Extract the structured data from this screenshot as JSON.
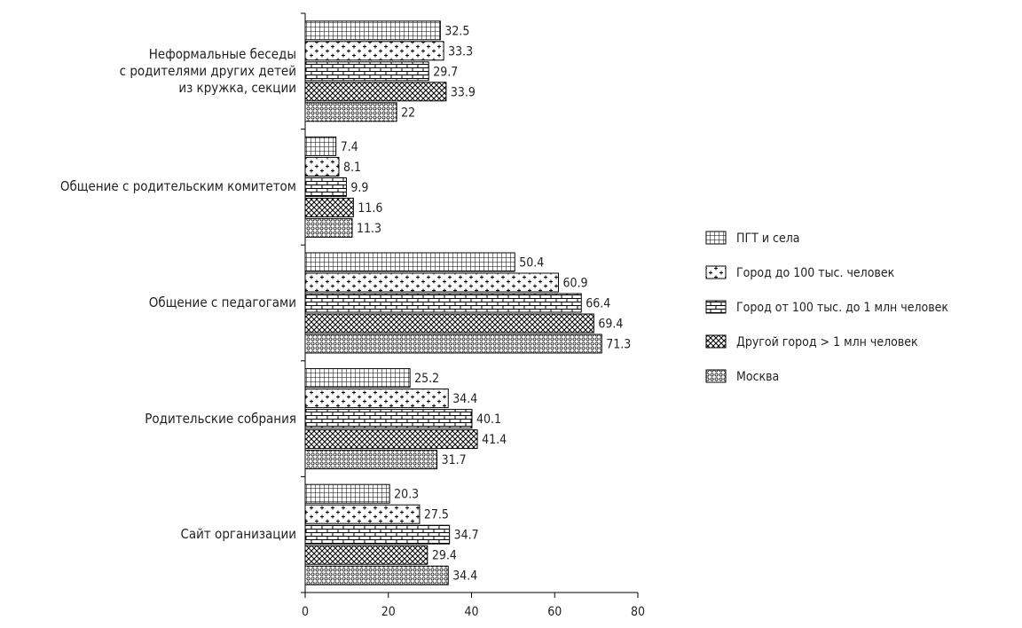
{
  "chart_data": {
    "type": "barh",
    "categories": [
      "Неформальные беседы\nс родителями других детей\nиз кружка, секции",
      "Общение с родительским комитетом",
      "Общение с педагогами",
      "Родительские собрания",
      "Сайт организации"
    ],
    "series": [
      {
        "name": "ПГТ и села",
        "color": "#000000",
        "pattern": "grid",
        "values": [
          32.5,
          7.4,
          50.4,
          25.2,
          20.3
        ]
      },
      {
        "name": "Город до 100 тыс. человек",
        "color": "#000000",
        "pattern": "plus",
        "values": [
          33.3,
          8.1,
          60.9,
          34.4,
          27.5
        ]
      },
      {
        "name": "Город от 100 тыс. до 1 млн человек",
        "color": "#000000",
        "pattern": "brick",
        "values": [
          29.7,
          9.9,
          66.4,
          40.1,
          34.7
        ]
      },
      {
        "name": "Другой город > 1 млн человек",
        "color": "#000000",
        "pattern": "crosshatch",
        "values": [
          33.9,
          11.6,
          69.4,
          41.4,
          29.4
        ]
      },
      {
        "name": "Москва",
        "color": "#000000",
        "pattern": "circles",
        "values": [
          22,
          11.3,
          71.3,
          31.7,
          34.4
        ]
      }
    ],
    "xlim": [
      0,
      80
    ],
    "xticks": [
      0,
      20,
      40,
      60,
      80
    ],
    "grid": false,
    "legend": "right"
  }
}
